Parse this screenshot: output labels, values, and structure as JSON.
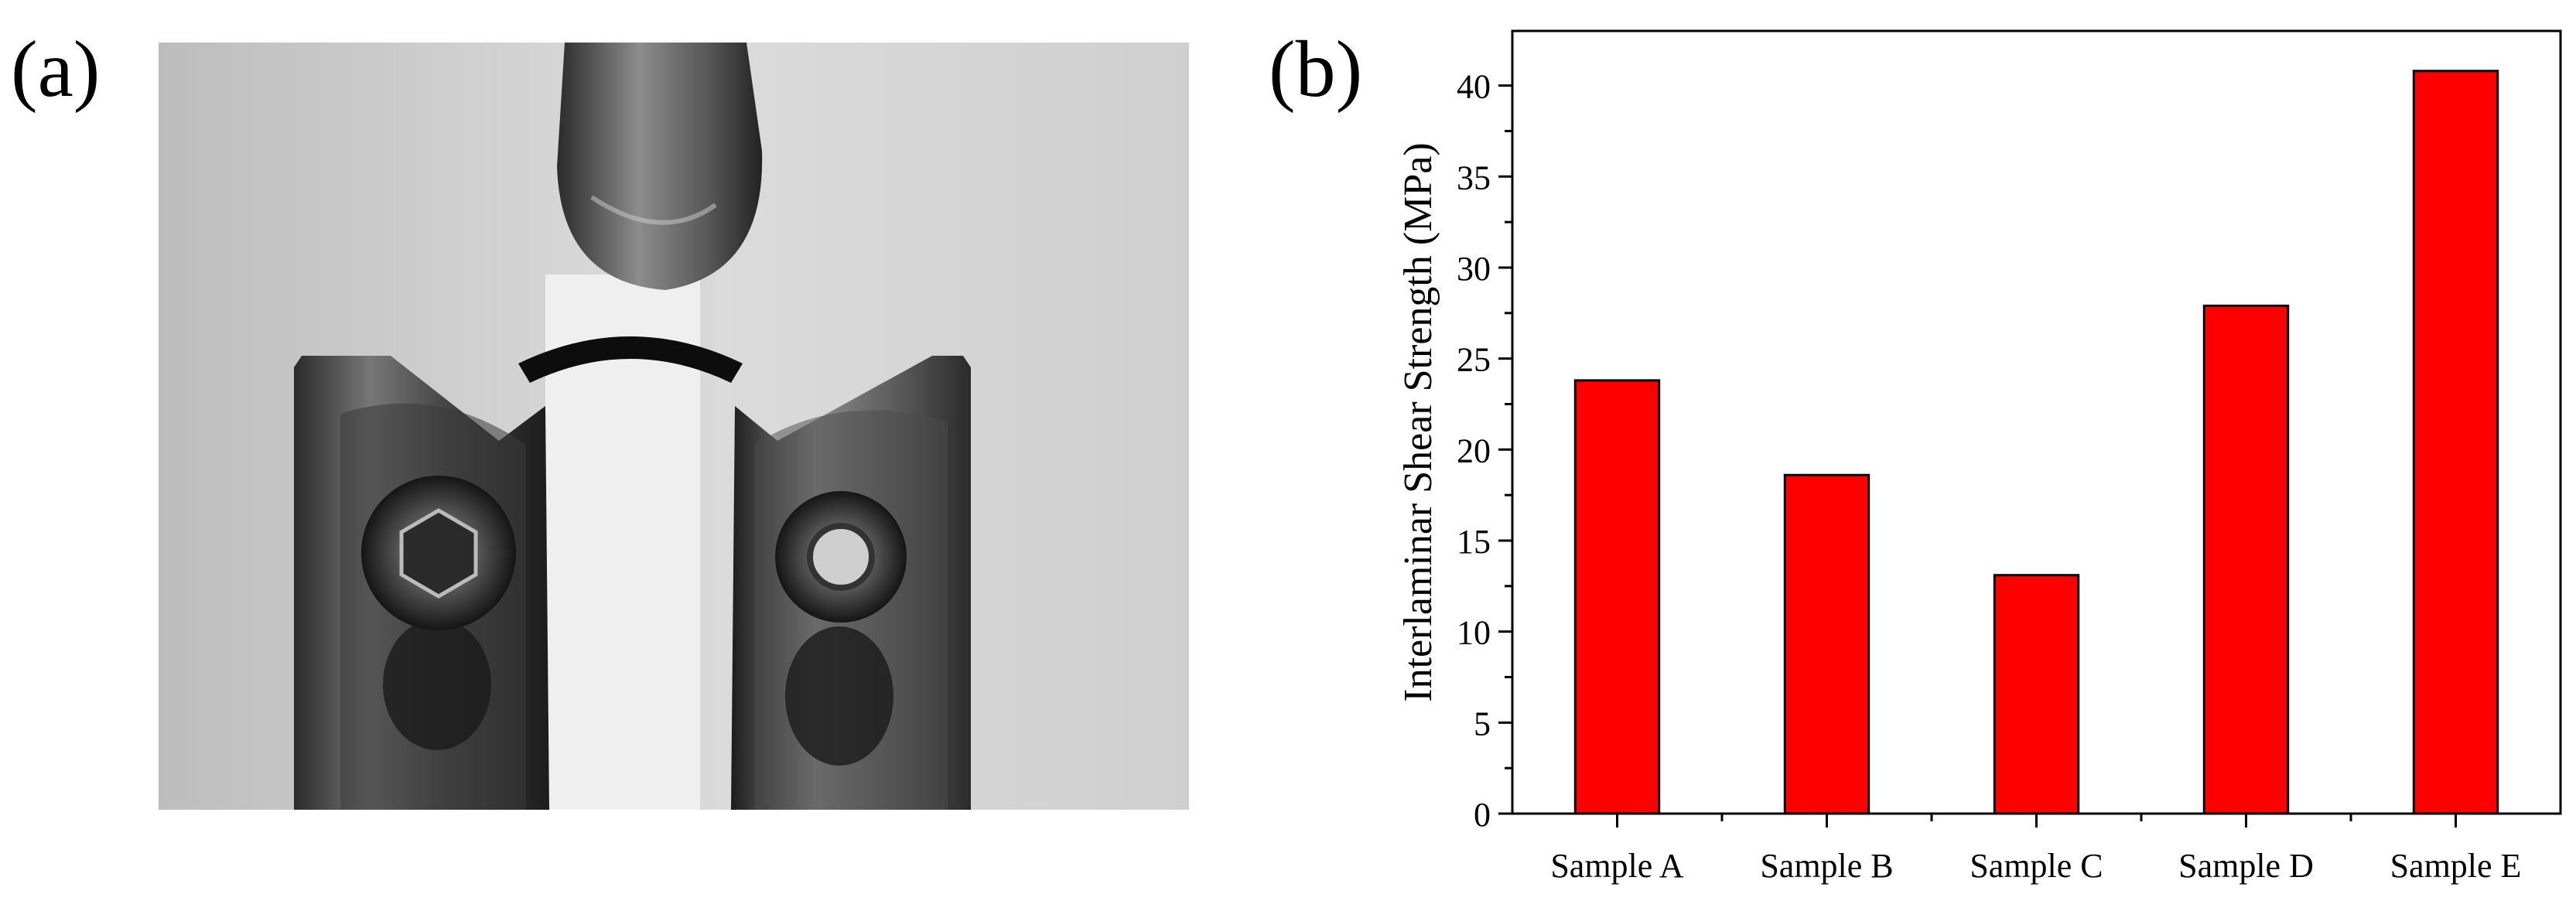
{
  "panels": {
    "a_label": "(a)",
    "b_label": "(b)"
  },
  "photo": {
    "description_icon": "three-point-bending-fixture-photo"
  },
  "colors": {
    "bar": "#ff0000",
    "bar_stroke": "#000000",
    "axis": "#000000"
  },
  "chart_data": {
    "type": "bar",
    "categories": [
      "Sample A",
      "Sample B",
      "Sample C",
      "Sample D",
      "Sample E"
    ],
    "values": [
      23.8,
      18.6,
      13.1,
      27.9,
      40.8
    ],
    "title": "",
    "xlabel": "",
    "ylabel": "Interlaminar Shear Strength (MPa)",
    "ylim": [
      0,
      43
    ],
    "yticks": [
      0,
      5,
      10,
      15,
      20,
      25,
      30,
      35,
      40
    ],
    "grid": false,
    "legend": "none"
  }
}
